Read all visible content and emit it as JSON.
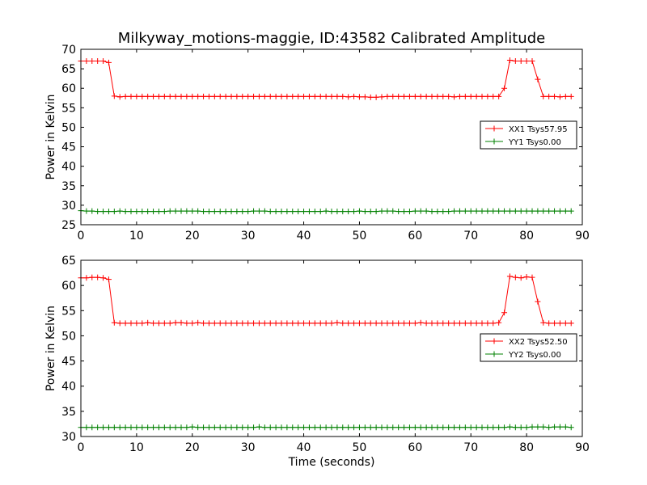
{
  "chart_data": {
    "type": "line",
    "title": "Milkyway_motions-maggie, ID:43582 Calibrated Amplitude",
    "xlabel": "Time (seconds)",
    "x_ticks": [
      "0",
      "10",
      "20",
      "30",
      "40",
      "50",
      "60",
      "70",
      "80",
      "90"
    ],
    "colors": {
      "xx": "#ff0000",
      "yy": "#008000"
    },
    "panels": [
      {
        "ylabel": "Power in Kelvin",
        "ylim": [
          25,
          70
        ],
        "xlim": [
          0,
          90
        ],
        "y_ticks": [
          "25",
          "30",
          "35",
          "40",
          "45",
          "50",
          "55",
          "60",
          "65",
          "70"
        ],
        "legend_position": "center-right",
        "series": [
          {
            "name": "XX1 Tsys57.95",
            "color": "#ff0000",
            "x": [
              0,
              1,
              2,
              3,
              4,
              5,
              6,
              7,
              8,
              9,
              10,
              11,
              12,
              13,
              14,
              15,
              16,
              17,
              18,
              19,
              20,
              21,
              22,
              23,
              24,
              25,
              26,
              27,
              28,
              29,
              30,
              31,
              32,
              33,
              34,
              35,
              36,
              37,
              38,
              39,
              40,
              41,
              42,
              43,
              44,
              45,
              46,
              47,
              48,
              49,
              50,
              51,
              52,
              53,
              54,
              55,
              56,
              57,
              58,
              59,
              60,
              61,
              62,
              63,
              64,
              65,
              66,
              67,
              68,
              69,
              70,
              71,
              72,
              73,
              74,
              75,
              76,
              77,
              78,
              79,
              80,
              81,
              82,
              83,
              84,
              85,
              86,
              87,
              88
            ],
            "values": [
              67,
              67,
              67,
              67,
              67,
              66.6,
              58,
              57.8,
              57.9,
              57.9,
              57.9,
              57.9,
              57.9,
              57.9,
              57.9,
              57.9,
              57.9,
              57.9,
              57.9,
              57.9,
              57.9,
              57.9,
              57.9,
              57.9,
              57.9,
              57.9,
              57.9,
              57.9,
              57.9,
              57.9,
              57.9,
              57.9,
              57.9,
              57.9,
              57.9,
              57.9,
              57.9,
              57.9,
              57.9,
              57.9,
              57.9,
              57.9,
              57.9,
              57.9,
              57.9,
              57.9,
              57.9,
              57.9,
              57.8,
              57.9,
              57.8,
              57.8,
              57.7,
              57.7,
              57.8,
              57.9,
              57.9,
              57.9,
              57.9,
              57.9,
              57.9,
              57.9,
              57.9,
              57.9,
              57.9,
              57.9,
              57.9,
              57.8,
              57.9,
              57.9,
              57.9,
              57.9,
              57.9,
              57.9,
              57.9,
              57.9,
              60,
              67.2,
              67,
              67,
              67,
              67,
              62.3,
              57.9,
              57.9,
              57.9,
              57.8,
              57.9,
              57.9
            ]
          },
          {
            "name": "YY1 Tsys0.00",
            "color": "#008000",
            "x": [
              0,
              1,
              2,
              3,
              4,
              5,
              6,
              7,
              8,
              9,
              10,
              11,
              12,
              13,
              14,
              15,
              16,
              17,
              18,
              19,
              20,
              21,
              22,
              23,
              24,
              25,
              26,
              27,
              28,
              29,
              30,
              31,
              32,
              33,
              34,
              35,
              36,
              37,
              38,
              39,
              40,
              41,
              42,
              43,
              44,
              45,
              46,
              47,
              48,
              49,
              50,
              51,
              52,
              53,
              54,
              55,
              56,
              57,
              58,
              59,
              60,
              61,
              62,
              63,
              64,
              65,
              66,
              67,
              68,
              69,
              70,
              71,
              72,
              73,
              74,
              75,
              76,
              77,
              78,
              79,
              80,
              81,
              82,
              83,
              84,
              85,
              86,
              87,
              88
            ],
            "values": [
              28.6,
              28.5,
              28.5,
              28.4,
              28.4,
              28.4,
              28.4,
              28.5,
              28.4,
              28.4,
              28.4,
              28.4,
              28.4,
              28.4,
              28.4,
              28.4,
              28.5,
              28.5,
              28.5,
              28.5,
              28.5,
              28.5,
              28.4,
              28.4,
              28.4,
              28.4,
              28.4,
              28.4,
              28.4,
              28.4,
              28.4,
              28.5,
              28.5,
              28.5,
              28.4,
              28.4,
              28.4,
              28.4,
              28.4,
              28.4,
              28.4,
              28.4,
              28.4,
              28.4,
              28.5,
              28.4,
              28.4,
              28.4,
              28.4,
              28.4,
              28.5,
              28.4,
              28.4,
              28.4,
              28.5,
              28.5,
              28.5,
              28.4,
              28.4,
              28.4,
              28.5,
              28.5,
              28.5,
              28.4,
              28.4,
              28.4,
              28.4,
              28.5,
              28.5,
              28.5,
              28.5,
              28.5,
              28.5,
              28.5,
              28.5,
              28.5,
              28.5,
              28.5,
              28.5,
              28.5,
              28.5,
              28.5,
              28.5,
              28.5,
              28.5,
              28.5,
              28.5,
              28.5,
              28.5
            ]
          }
        ]
      },
      {
        "ylabel": "Power in Kelvin",
        "ylim": [
          30,
          65
        ],
        "xlim": [
          0,
          90
        ],
        "y_ticks": [
          "30",
          "35",
          "40",
          "45",
          "50",
          "55",
          "60",
          "65"
        ],
        "legend_position": "center-right",
        "series": [
          {
            "name": "XX2 Tsys52.50",
            "color": "#ff0000",
            "x": [
              0,
              1,
              2,
              3,
              4,
              5,
              6,
              7,
              8,
              9,
              10,
              11,
              12,
              13,
              14,
              15,
              16,
              17,
              18,
              19,
              20,
              21,
              22,
              23,
              24,
              25,
              26,
              27,
              28,
              29,
              30,
              31,
              32,
              33,
              34,
              35,
              36,
              37,
              38,
              39,
              40,
              41,
              42,
              43,
              44,
              45,
              46,
              47,
              48,
              49,
              50,
              51,
              52,
              53,
              54,
              55,
              56,
              57,
              58,
              59,
              60,
              61,
              62,
              63,
              64,
              65,
              66,
              67,
              68,
              69,
              70,
              71,
              72,
              73,
              74,
              75,
              76,
              77,
              78,
              79,
              80,
              81,
              82,
              83,
              84,
              85,
              86,
              87,
              88
            ],
            "values": [
              61.5,
              61.5,
              61.6,
              61.6,
              61.5,
              61.2,
              52.6,
              52.5,
              52.5,
              52.5,
              52.5,
              52.5,
              52.6,
              52.5,
              52.5,
              52.5,
              52.5,
              52.6,
              52.6,
              52.5,
              52.5,
              52.6,
              52.5,
              52.5,
              52.5,
              52.5,
              52.5,
              52.5,
              52.5,
              52.5,
              52.5,
              52.5,
              52.5,
              52.5,
              52.5,
              52.5,
              52.5,
              52.5,
              52.5,
              52.5,
              52.5,
              52.5,
              52.5,
              52.5,
              52.5,
              52.5,
              52.6,
              52.5,
              52.5,
              52.5,
              52.5,
              52.5,
              52.5,
              52.5,
              52.5,
              52.5,
              52.5,
              52.5,
              52.5,
              52.5,
              52.5,
              52.6,
              52.5,
              52.5,
              52.5,
              52.5,
              52.5,
              52.5,
              52.5,
              52.5,
              52.5,
              52.5,
              52.5,
              52.5,
              52.5,
              52.6,
              54.6,
              61.8,
              61.6,
              61.5,
              61.7,
              61.6,
              56.8,
              52.6,
              52.5,
              52.5,
              52.5,
              52.5,
              52.5
            ]
          },
          {
            "name": "YY2 Tsys0.00",
            "color": "#008000",
            "x": [
              0,
              1,
              2,
              3,
              4,
              5,
              6,
              7,
              8,
              9,
              10,
              11,
              12,
              13,
              14,
              15,
              16,
              17,
              18,
              19,
              20,
              21,
              22,
              23,
              24,
              25,
              26,
              27,
              28,
              29,
              30,
              31,
              32,
              33,
              34,
              35,
              36,
              37,
              38,
              39,
              40,
              41,
              42,
              43,
              44,
              45,
              46,
              47,
              48,
              49,
              50,
              51,
              52,
              53,
              54,
              55,
              56,
              57,
              58,
              59,
              60,
              61,
              62,
              63,
              64,
              65,
              66,
              67,
              68,
              69,
              70,
              71,
              72,
              73,
              74,
              75,
              76,
              77,
              78,
              79,
              80,
              81,
              82,
              83,
              84,
              85,
              86,
              87,
              88
            ],
            "values": [
              31.8,
              31.8,
              31.8,
              31.8,
              31.8,
              31.8,
              31.8,
              31.8,
              31.8,
              31.8,
              31.8,
              31.8,
              31.8,
              31.8,
              31.8,
              31.8,
              31.8,
              31.8,
              31.8,
              31.8,
              31.9,
              31.8,
              31.8,
              31.8,
              31.8,
              31.8,
              31.8,
              31.8,
              31.8,
              31.8,
              31.8,
              31.8,
              31.9,
              31.8,
              31.8,
              31.8,
              31.8,
              31.8,
              31.8,
              31.8,
              31.8,
              31.8,
              31.8,
              31.8,
              31.8,
              31.8,
              31.8,
              31.8,
              31.8,
              31.8,
              31.8,
              31.8,
              31.8,
              31.8,
              31.8,
              31.8,
              31.8,
              31.8,
              31.8,
              31.8,
              31.8,
              31.8,
              31.8,
              31.8,
              31.8,
              31.8,
              31.8,
              31.8,
              31.8,
              31.8,
              31.8,
              31.8,
              31.8,
              31.8,
              31.8,
              31.8,
              31.8,
              31.9,
              31.8,
              31.8,
              31.8,
              31.9,
              31.9,
              31.9,
              31.8,
              31.9,
              31.9,
              31.9,
              31.8
            ]
          }
        ]
      }
    ]
  }
}
